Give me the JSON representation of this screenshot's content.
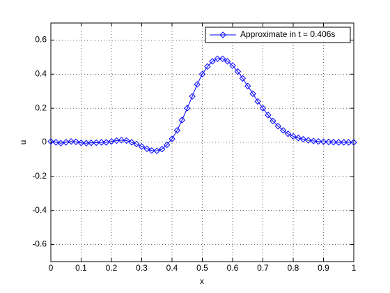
{
  "chart_data": {
    "type": "line",
    "xlabel": "x",
    "ylabel": "u",
    "x": [
      0,
      0.017,
      0.033,
      0.05,
      0.067,
      0.083,
      0.1,
      0.117,
      0.133,
      0.15,
      0.167,
      0.183,
      0.2,
      0.217,
      0.233,
      0.25,
      0.267,
      0.283,
      0.3,
      0.317,
      0.333,
      0.35,
      0.367,
      0.383,
      0.4,
      0.417,
      0.433,
      0.45,
      0.467,
      0.483,
      0.5,
      0.517,
      0.533,
      0.55,
      0.567,
      0.583,
      0.6,
      0.617,
      0.633,
      0.65,
      0.667,
      0.683,
      0.7,
      0.717,
      0.733,
      0.75,
      0.767,
      0.783,
      0.8,
      0.817,
      0.833,
      0.85,
      0.867,
      0.883,
      0.9,
      0.917,
      0.933,
      0.95,
      0.967,
      0.983,
      1
    ],
    "series": [
      {
        "name": "Approximate in t = 0.406s",
        "color": "#0000ff",
        "values": [
          0.005,
          0.0,
          -0.005,
          0.0,
          0.005,
          0.003,
          -0.003,
          -0.005,
          -0.003,
          -0.002,
          0.0,
          0.0,
          0.005,
          0.01,
          0.013,
          0.01,
          0.0,
          -0.01,
          -0.025,
          -0.038,
          -0.048,
          -0.05,
          -0.04,
          -0.015,
          0.02,
          0.07,
          0.13,
          0.2,
          0.27,
          0.34,
          0.4,
          0.445,
          0.475,
          0.49,
          0.49,
          0.475,
          0.45,
          0.415,
          0.375,
          0.33,
          0.285,
          0.24,
          0.2,
          0.16,
          0.125,
          0.095,
          0.07,
          0.05,
          0.035,
          0.025,
          0.018,
          0.012,
          0.008,
          0.005,
          0.003,
          0.002,
          0.001,
          0.0,
          0.0,
          0.0,
          0.0
        ]
      }
    ],
    "xlim": [
      0,
      1
    ],
    "xticks": [
      0,
      0.1,
      0.2,
      0.3,
      0.4,
      0.5,
      0.6,
      0.7,
      0.8,
      0.9,
      1
    ],
    "ylim": [
      -0.7,
      0.7
    ],
    "yticks": [
      -0.6,
      -0.4,
      -0.2,
      0,
      0.2,
      0.4,
      0.6
    ],
    "grid": true,
    "legend": "upper right",
    "marker": "diamond"
  }
}
